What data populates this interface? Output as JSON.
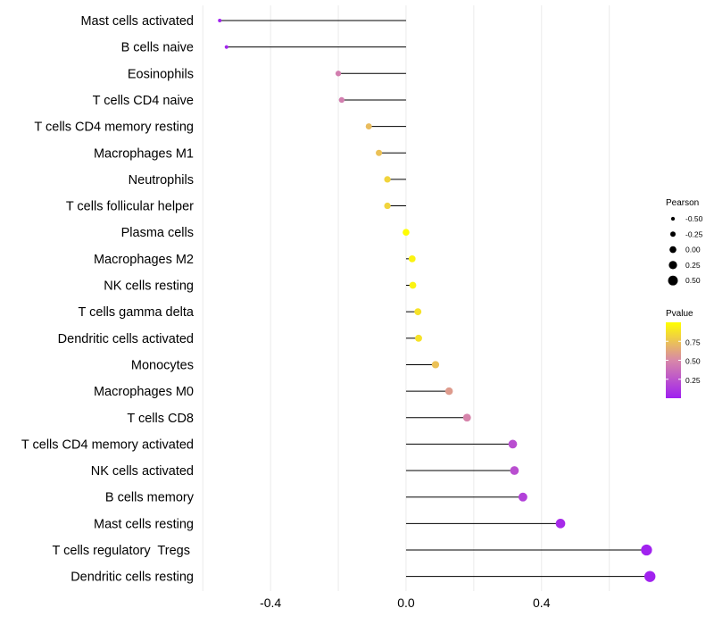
{
  "chart_data": {
    "type": "lollipop",
    "x_axis": {
      "ticks": [
        -0.4,
        0.0,
        0.4
      ],
      "tick_labels": [
        "-0.4",
        "0.0",
        "0.4"
      ],
      "xlim": [
        -0.598,
        0.73
      ],
      "minor_gridlines": [
        -0.6,
        -0.2,
        0.2,
        0.6
      ]
    },
    "categories": [
      "Mast cells activated",
      "B cells naive",
      "Eosinophils",
      "T cells CD4 naive",
      "T cells CD4 memory resting",
      "Macrophages M1",
      "Neutrophils",
      "T cells follicular helper",
      "Plasma cells",
      "Macrophages M2",
      "NK cells resting",
      "T cells gamma delta",
      "Dendritic cells activated",
      "Monocytes",
      "Macrophages M0",
      "T cells CD8",
      "T cells CD4 memory activated",
      "NK cells activated",
      "B cells memory",
      "Mast cells resting",
      "T cells regulatory  Tregs ",
      "Dendritic cells resting"
    ],
    "pearson": [
      -0.55,
      -0.53,
      -0.2,
      -0.19,
      -0.11,
      -0.08,
      -0.055,
      -0.055,
      0.0,
      0.018,
      0.02,
      0.035,
      0.037,
      0.087,
      0.127,
      0.18,
      0.315,
      0.32,
      0.345,
      0.456,
      0.71,
      0.72
    ],
    "pvalue": [
      0.01,
      0.02,
      0.45,
      0.45,
      0.72,
      0.74,
      0.82,
      0.82,
      0.99,
      0.95,
      0.95,
      0.88,
      0.88,
      0.74,
      0.58,
      0.48,
      0.22,
      0.22,
      0.16,
      0.05,
      0.01,
      0.01
    ],
    "legend_size": {
      "title": "Pearson",
      "labels": [
        "-0.50",
        "-0.25",
        "0.00",
        "0.25",
        "0.50"
      ],
      "values": [
        -0.5,
        -0.25,
        0.0,
        0.25,
        0.5
      ]
    },
    "legend_color": {
      "title": "Pvalue",
      "labels": [
        "0.75",
        "0.50",
        "0.25"
      ],
      "values": [
        0.75,
        0.5,
        0.25
      ],
      "range": [
        0.0,
        1.0
      ],
      "low_color": "#a020f0",
      "mid_color": "#d888a8",
      "high_color": "#ffff00"
    },
    "colors": {
      "segment": "#000000",
      "grid": "#ebebeb",
      "text": "#000000"
    }
  }
}
